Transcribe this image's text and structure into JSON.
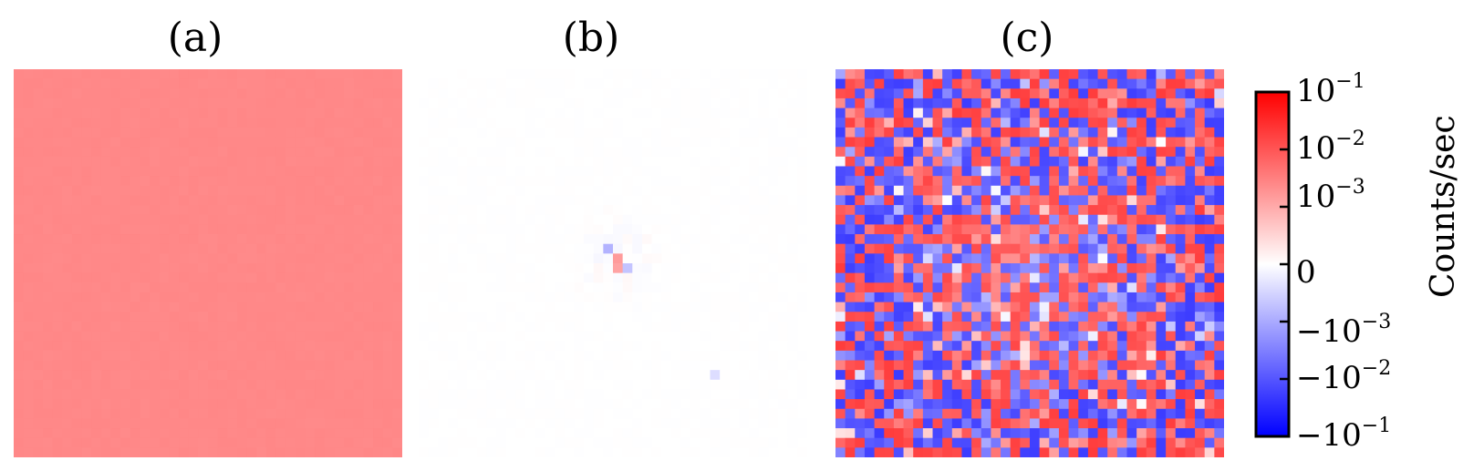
{
  "chart_data": {
    "type": "heatmap",
    "grid_size": [
      40,
      40
    ],
    "colormap": "bwr",
    "colors": {
      "negative": "#0000ff",
      "zero": "#ffffff",
      "positive": "#ff0000"
    },
    "scale": "symlog",
    "linthresh": 0.001,
    "vmin": -0.1,
    "vmax": 0.1,
    "colorbar": {
      "label": "Counts/sec",
      "ticks": [
        {
          "value": 0.1,
          "base": "10",
          "exp": "−1",
          "sign": ""
        },
        {
          "value": 0.01,
          "base": "10",
          "exp": "−2",
          "sign": ""
        },
        {
          "value": 0.001,
          "base": "10",
          "exp": "−3",
          "sign": ""
        },
        {
          "value": 0,
          "base": "0",
          "exp": "",
          "sign": ""
        },
        {
          "value": -0.001,
          "base": "10",
          "exp": "−3",
          "sign": "−"
        },
        {
          "value": -0.01,
          "base": "10",
          "exp": "−2",
          "sign": "−"
        },
        {
          "value": -0.1,
          "base": "10",
          "exp": "−1",
          "sign": "−"
        }
      ]
    },
    "panels": [
      {
        "title": "(a)",
        "pattern": "uniform",
        "approx_value": 0.02
      },
      {
        "title": "(b)",
        "pattern": "near-zero with small central feature",
        "approx_value": 0.0
      },
      {
        "title": "(c)",
        "pattern": "noise",
        "approx_value": "±0.03"
      }
    ]
  }
}
